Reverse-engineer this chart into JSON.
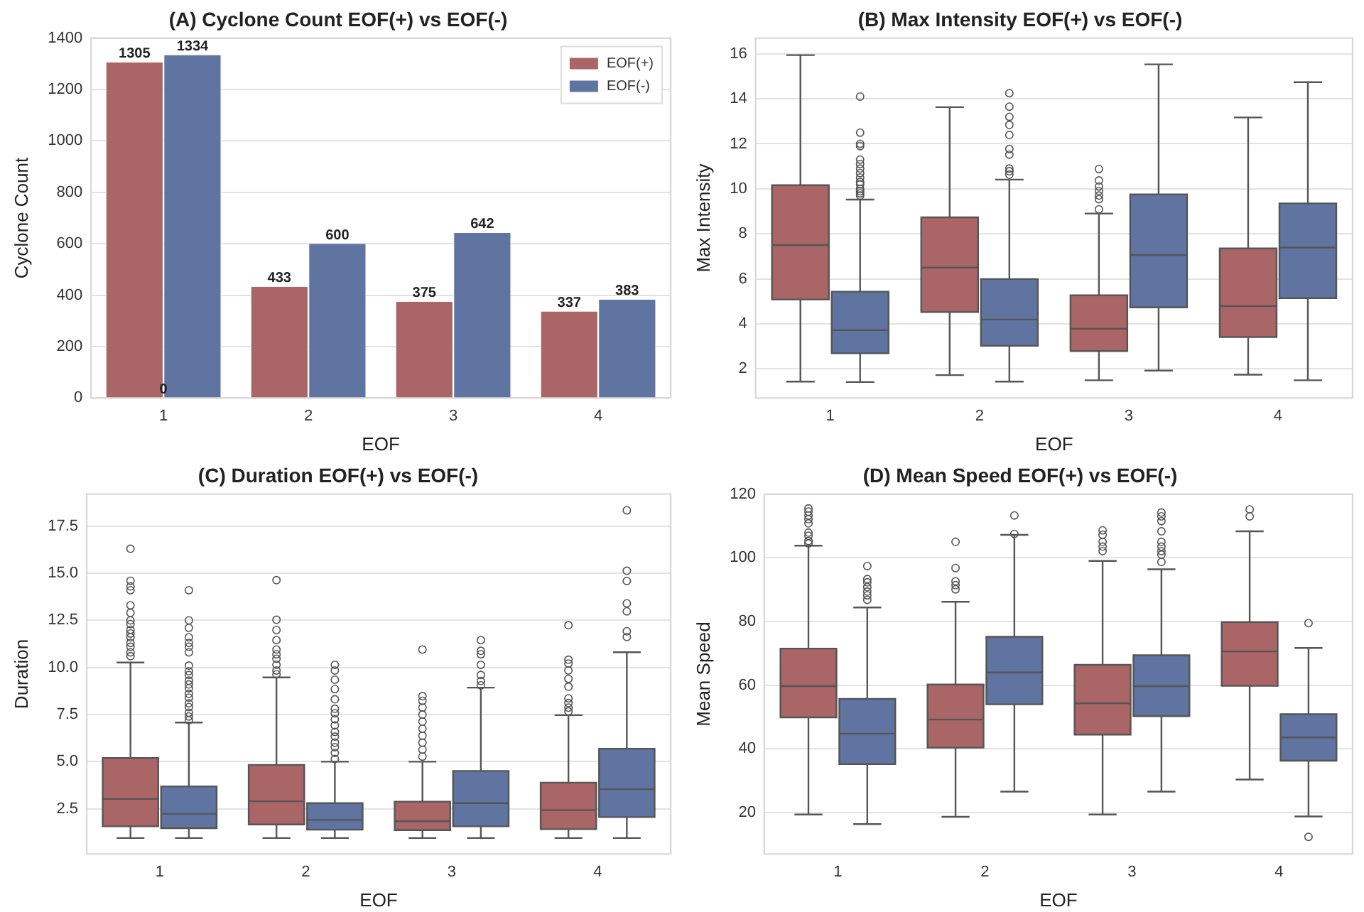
{
  "chart_data": [
    {
      "type": "bar",
      "title": "(A) Cyclone Count EOF(+) vs EOF(-)",
      "xlabel": "EOF",
      "ylabel": "Cyclone Count",
      "categories": [
        "1",
        "2",
        "3",
        "4"
      ],
      "series": [
        {
          "name": "EOF(+)",
          "color": "#aa6567",
          "values": [
            1305,
            433,
            375,
            337
          ]
        },
        {
          "name": "EOF(-)",
          "color": "#5f74a0",
          "values": [
            1334,
            600,
            642,
            383
          ]
        }
      ],
      "ylim": [
        0,
        1400
      ],
      "yticks": [
        0,
        200,
        400,
        600,
        800,
        1000,
        1200,
        1400
      ],
      "grid": "y",
      "legend": "top right",
      "data_labels": true,
      "annotations": [
        {
          "text": "0",
          "x": "1",
          "y": 0
        }
      ]
    },
    {
      "type": "box",
      "title": "(B) Max Intensity EOF(+) vs EOF(-)",
      "xlabel": "EOF",
      "ylabel": "Max Intensity",
      "categories": [
        "1",
        "2",
        "3",
        "4"
      ],
      "series": [
        {
          "color": "#aa6567",
          "boxes": [
            {
              "low": 1.43,
              "q1": 5.08,
              "median": 7.5,
              "q3": 10.16,
              "high": 15.94
            },
            {
              "low": 1.72,
              "q1": 4.52,
              "median": 6.5,
              "q3": 8.73,
              "high": 13.63
            },
            {
              "low": 1.49,
              "q1": 2.79,
              "median": 3.78,
              "q3": 5.27,
              "high": 8.9,
              "outliers": [
                10.88,
                10.37,
                10.1,
                9.9,
                9.7,
                9.54,
                9.09
              ]
            },
            {
              "low": 1.74,
              "q1": 3.41,
              "median": 4.79,
              "q3": 7.35,
              "high": 13.17
            }
          ]
        },
        {
          "color": "#5f74a0",
          "boxes": [
            {
              "low": 1.41,
              "q1": 2.69,
              "median": 3.72,
              "q3": 5.43,
              "high": 9.52,
              "outliers": [
                14.1,
                12.5,
                12.0,
                11.9,
                11.3,
                11.1,
                10.9,
                10.7,
                10.5,
                10.3,
                10.2,
                10.0,
                9.9,
                9.8,
                9.7
              ]
            },
            {
              "low": 1.43,
              "q1": 3.02,
              "median": 4.19,
              "q3": 5.99,
              "high": 10.41,
              "outliers": [
                14.25,
                13.65,
                13.2,
                12.84,
                12.39,
                11.77,
                11.52,
                10.9,
                10.78,
                10.63
              ]
            },
            {
              "low": 1.92,
              "q1": 4.73,
              "median": 7.06,
              "q3": 9.75,
              "high": 15.53
            },
            {
              "low": 1.49,
              "q1": 5.14,
              "median": 7.39,
              "q3": 9.35,
              "high": 14.74
            }
          ]
        }
      ],
      "ylim": [
        0.7,
        16.7
      ],
      "yticks": [
        2,
        4,
        6,
        8,
        10,
        12,
        14,
        16
      ],
      "grid": "y"
    },
    {
      "type": "box",
      "title": "(C) Duration EOF(+) vs EOF(-)",
      "xlabel": "EOF",
      "ylabel": "Duration",
      "categories": [
        "1",
        "2",
        "3",
        "4"
      ],
      "series": [
        {
          "color": "#aa6567",
          "boxes": [
            {
              "low": 0.95,
              "q1": 1.57,
              "median": 3.02,
              "q3": 5.2,
              "high": 10.26,
              "outliers": [
                16.3,
                14.6,
                14.3,
                14.1,
                13.3,
                12.9,
                12.5,
                12.3,
                12.0,
                11.8,
                11.6,
                11.3,
                11.1,
                10.8,
                10.6
              ]
            },
            {
              "low": 0.95,
              "q1": 1.67,
              "median": 2.9,
              "q3": 4.83,
              "high": 9.47,
              "outliers": [
                14.63,
                12.53,
                11.99,
                11.45,
                10.95,
                10.7,
                10.46,
                10.14,
                9.84,
                9.64
              ]
            },
            {
              "low": 0.95,
              "q1": 1.37,
              "median": 1.84,
              "q3": 2.88,
              "high": 5.0,
              "outliers": [
                10.95,
                8.48,
                8.23,
                7.87,
                7.5,
                7.13,
                6.75,
                6.38,
                6.01,
                5.64,
                5.27
              ]
            },
            {
              "low": 0.95,
              "q1": 1.42,
              "median": 2.43,
              "q3": 3.89,
              "high": 7.47,
              "outliers": [
                12.24,
                10.41,
                10.21,
                9.84,
                9.4,
                8.98,
                8.36,
                8.11,
                7.87,
                7.67
              ]
            }
          ]
        },
        {
          "color": "#5f74a0",
          "boxes": [
            {
              "low": 0.95,
              "q1": 1.47,
              "median": 2.23,
              "q3": 3.69,
              "high": 7.08,
              "outliers": [
                14.1,
                12.5,
                12.1,
                11.6,
                11.3,
                11.1,
                10.8,
                10.1,
                9.8,
                9.6,
                9.3,
                9.1,
                8.9,
                8.6,
                8.4,
                8.1,
                7.9,
                7.6,
                7.4,
                7.2
              ]
            },
            {
              "low": 0.95,
              "q1": 1.39,
              "median": 1.91,
              "q3": 2.8,
              "high": 5.0,
              "outliers": [
                10.14,
                9.84,
                9.35,
                8.85,
                8.31,
                7.81,
                7.57,
                7.25,
                6.93,
                6.58,
                6.33,
                6.01,
                5.77,
                5.47,
                5.15
              ]
            },
            {
              "low": 0.95,
              "q1": 1.57,
              "median": 2.8,
              "q3": 4.51,
              "high": 8.93,
              "outliers": [
                11.45,
                10.88,
                10.7,
                10.14,
                9.6,
                9.28,
                9.05
              ]
            },
            {
              "low": 0.95,
              "q1": 2.06,
              "median": 3.54,
              "q3": 5.69,
              "high": 10.81,
              "outliers": [
                18.34,
                15.13,
                14.59,
                13.4,
                12.98,
                11.92,
                11.62
              ]
            }
          ]
        }
      ],
      "ylim": [
        0.1,
        19.2
      ],
      "yticks": [
        2.5,
        {
          "value": 5,
          "label": "5.0"
        },
        7.5,
        {
          "value": 10,
          "label": "10.0"
        },
        12.5,
        {
          "value": 15,
          "label": "15.0"
        },
        17.5
      ],
      "grid": "y"
    },
    {
      "type": "box",
      "title": "(D) Mean Speed EOF(+) vs EOF(-)",
      "xlabel": "EOF",
      "ylabel": "Mean Speed",
      "categories": [
        "1",
        "2",
        "3",
        "4"
      ],
      "series": [
        {
          "color": "#aa6567",
          "boxes": [
            {
              "low": 19.4,
              "q1": 49.9,
              "median": 59.7,
              "q3": 71.5,
              "high": 103.8,
              "outliers": [
                115.5,
                114.5,
                113.3,
                112.1,
                110.8,
                107.9,
                106.9,
                105.3,
                104.5
              ]
            },
            {
              "low": 18.7,
              "q1": 40.4,
              "median": 49.2,
              "q3": 60.2,
              "high": 86.2,
              "outliers": [
                105.0,
                96.8,
                92.6,
                91.4,
                90.1
              ]
            },
            {
              "low": 19.4,
              "q1": 44.5,
              "median": 54.3,
              "q3": 66.4,
              "high": 99.0,
              "outliers": [
                108.6,
                107.2,
                105.0,
                103.5,
                102.1
              ]
            },
            {
              "low": 30.4,
              "q1": 59.8,
              "median": 70.6,
              "q3": 79.8,
              "high": 108.3,
              "outliers": [
                115.2,
                113.0
              ]
            }
          ]
        },
        {
          "color": "#5f74a0",
          "boxes": [
            {
              "low": 16.4,
              "q1": 35.2,
              "median": 44.8,
              "q3": 55.7,
              "high": 84.4,
              "outliers": [
                97.4,
                93.3,
                92.3,
                90.8,
                89.4,
                88.2,
                86.8
              ]
            },
            {
              "low": 26.6,
              "q1": 54.0,
              "median": 64.0,
              "q3": 75.2,
              "high": 107.2,
              "outliers": [
                113.3,
                107.5
              ]
            },
            {
              "low": 26.6,
              "q1": 50.3,
              "median": 59.7,
              "q3": 69.4,
              "high": 96.4,
              "outliers": [
                114.2,
                113.0,
                111.5,
                108.3,
                105.0,
                103.5,
                102.1,
                101.0,
                98.7
              ]
            },
            {
              "low": 18.8,
              "q1": 36.3,
              "median": 43.6,
              "q3": 50.9,
              "high": 71.7,
              "outliers": [
                79.5,
                12.4
              ]
            }
          ]
        }
      ],
      "ylim": [
        7,
        120
      ],
      "yticks": [
        20,
        40,
        60,
        80,
        100,
        120
      ],
      "grid": "y"
    }
  ]
}
